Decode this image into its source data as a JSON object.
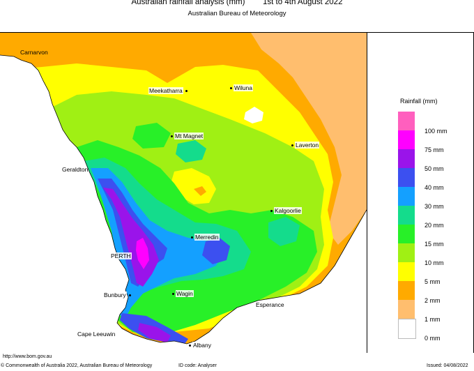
{
  "header": {
    "title": "Australian rainfall analysis (mm)        1st to 4th August 2022",
    "subtitle": "Australian Bureau of Meteorology"
  },
  "legend": {
    "title": "Rainfall (mm)",
    "items": [
      {
        "label": "100 mm",
        "color": "#ff5fbe"
      },
      {
        "label": "75 mm",
        "color": "#ff00ff"
      },
      {
        "label": "50 mm",
        "color": "#9a14ea"
      },
      {
        "label": "40 mm",
        "color": "#3c50f0"
      },
      {
        "label": "30 mm",
        "color": "#14a0ff"
      },
      {
        "label": "20 mm",
        "color": "#14dc8c"
      },
      {
        "label": "15 mm",
        "color": "#28f028"
      },
      {
        "label": "10 mm",
        "color": "#a0f014"
      },
      {
        "label": "5 mm",
        "color": "#ffff00"
      },
      {
        "label": "2 mm",
        "color": "#ffaa00"
      },
      {
        "label": "1 mm",
        "color": "#ffbe6e"
      },
      {
        "label": "0 mm",
        "color": "#ffffff"
      }
    ]
  },
  "places": {
    "carnarvon": "Carnarvon",
    "meekatharra": "Meekatharra",
    "wiluna": "Wiluna",
    "mt_magnet": "Mt Magnet",
    "laverton": "Laverton",
    "geraldton": "Geraldton",
    "kalgoorlie": "Kalgoorlie",
    "merredin": "Merredin",
    "perth": "PERTH",
    "bunbury": "Bunbury",
    "wagin": "Wagin",
    "esperance": "Esperance",
    "cape_leeuwin": "Cape Leeuwin",
    "albany": "Albany"
  },
  "footer": {
    "url": "http://www.bom.gov.au",
    "copyright": "© Commonwealth of Australia 2022, Australian Bureau of Meteorology",
    "id_code": "ID code: Analyser",
    "issued": "Issued: 04/08/2022"
  },
  "colors": {
    "ocean": "#ffffff",
    "coastline": "#000000",
    "contour": "#333333"
  }
}
